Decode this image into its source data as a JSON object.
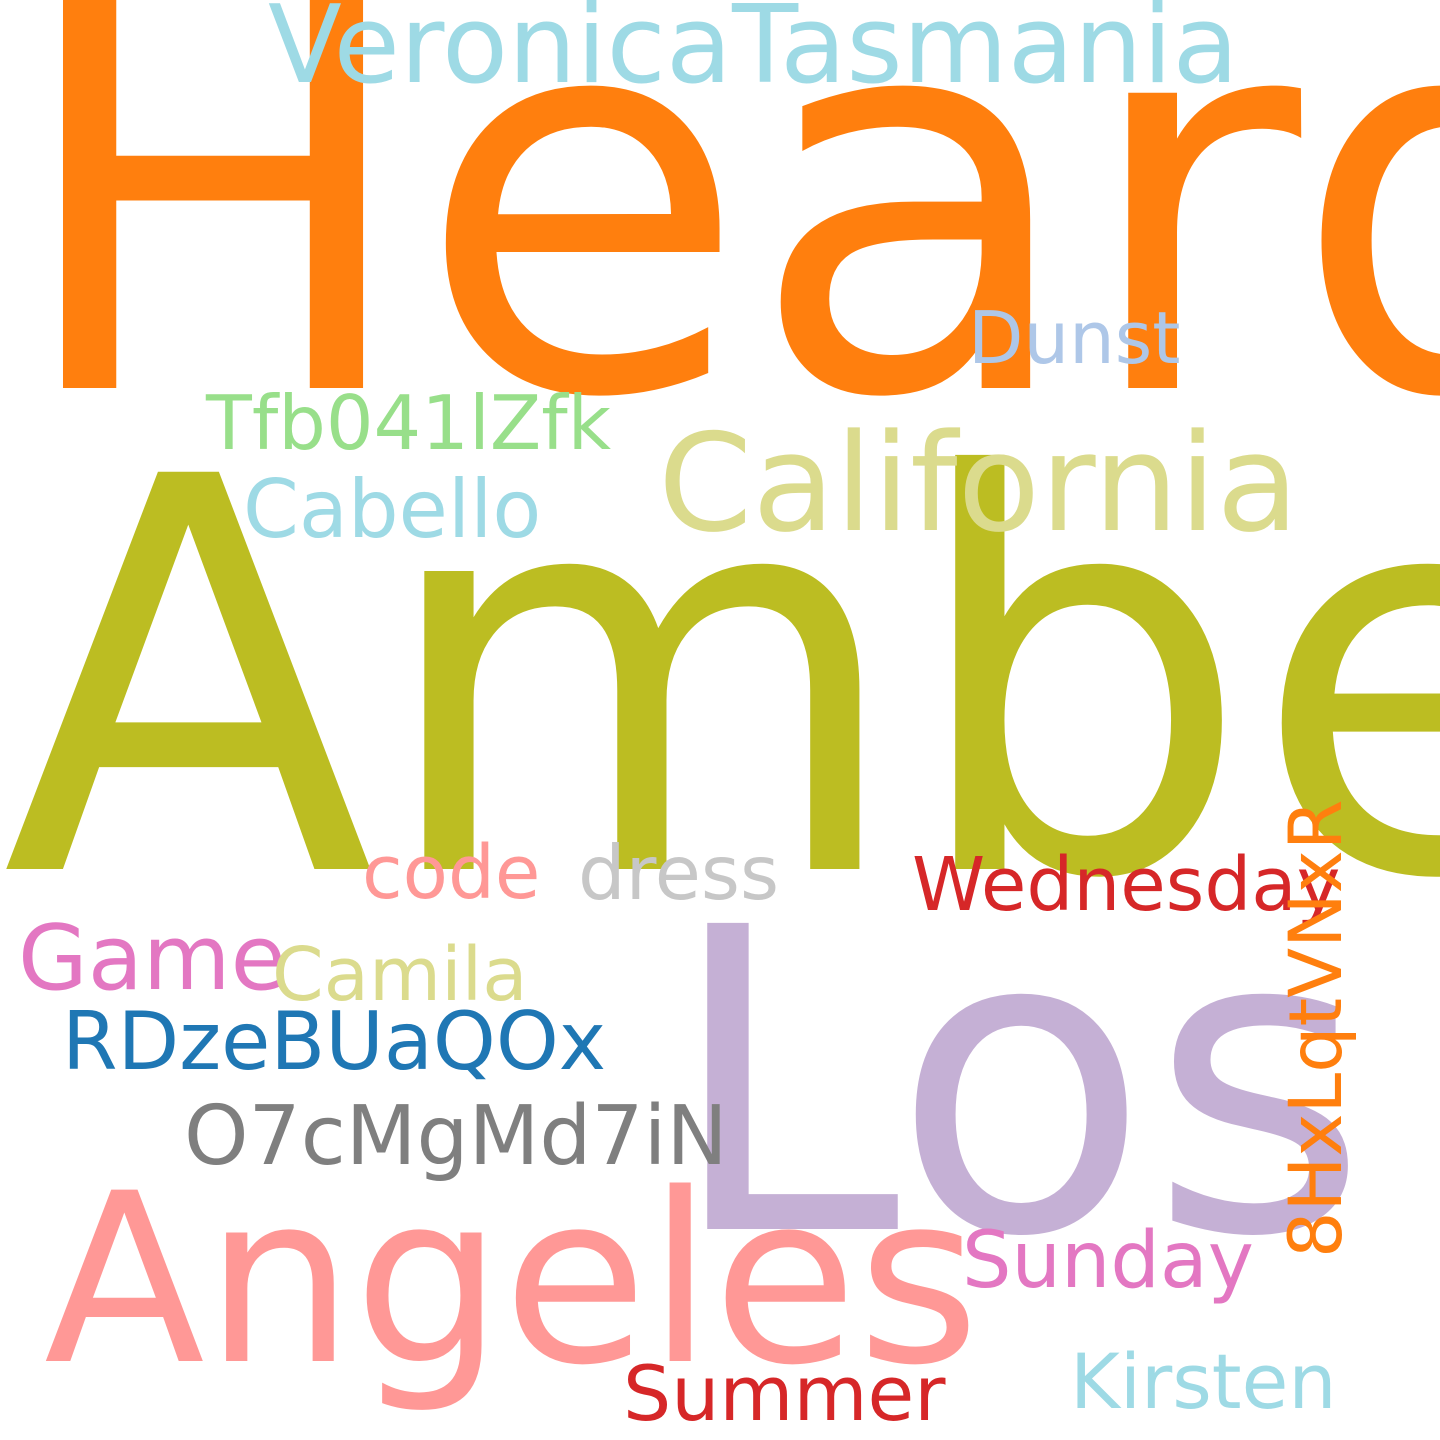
{
  "words": {
    "heard": {
      "text": "Heard",
      "color": "#ff7f0e"
    },
    "veronica": {
      "text": "VeronicaTasmania",
      "color": "#9edae5"
    },
    "amber": {
      "text": "Amber",
      "color": "#bcbd22"
    },
    "dunst": {
      "text": "Dunst",
      "color": "#aec7e8"
    },
    "tfb": {
      "text": "Tfb041lZfk",
      "color": "#98df8a"
    },
    "california": {
      "text": "California",
      "color": "#dbdb8d"
    },
    "cabello": {
      "text": "Cabello",
      "color": "#9edae5"
    },
    "code": {
      "text": "code",
      "color": "#ff9896"
    },
    "dress": {
      "text": "dress",
      "color": "#c7c7c7"
    },
    "wednesday": {
      "text": "Wednesday",
      "color": "#d62728"
    },
    "game": {
      "text": "Game",
      "color": "#e377c2"
    },
    "camila": {
      "text": "Camila",
      "color": "#dbdb8d"
    },
    "los": {
      "text": "Los",
      "color": "#c5b0d5"
    },
    "rdze": {
      "text": "RDzeBUaQOx",
      "color": "#1f77b4"
    },
    "o7c": {
      "text": "O7cMgMd7iN",
      "color": "#7f7f7f"
    },
    "hx": {
      "text": "8HxLqtVNxR",
      "color": "#ff7f0e"
    },
    "angeles": {
      "text": "Angeles",
      "color": "#ff9896"
    },
    "sunday": {
      "text": "Sunday",
      "color": "#e377c2"
    },
    "summer": {
      "text": "Summer",
      "color": "#d62728"
    },
    "kirsten": {
      "text": "Kirsten",
      "color": "#9edae5"
    }
  }
}
